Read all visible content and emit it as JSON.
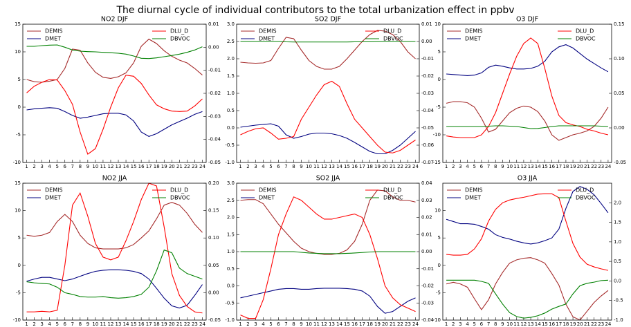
{
  "title": "The diurnal cycle of individual contributors to the total urbanization effect in ppbv",
  "chart_data": [
    {
      "type": "line",
      "title": "NO2 DJF",
      "x": [
        1,
        2,
        3,
        4,
        5,
        6,
        7,
        8,
        9,
        10,
        11,
        12,
        13,
        14,
        15,
        16,
        17,
        18,
        19,
        20,
        21,
        22,
        23,
        24
      ],
      "xlim": [
        0.5,
        24.5
      ],
      "ylim": [
        -10,
        15
      ],
      "yticks": [
        -10,
        -5,
        0,
        5,
        10,
        15
      ],
      "y2lim": [
        -0.05,
        0.01
      ],
      "y2ticks": [
        -0.05,
        -0.04,
        -0.03,
        -0.02,
        -0.01,
        {
          "value": 0,
          "label": "0.00"
        },
        0.01
      ],
      "legend": "upper left",
      "y2legend": "upper right",
      "series": [
        {
          "name": "DEMIS",
          "color": "#a52a2a",
          "values": [
            5,
            4.6,
            4.5,
            4.7,
            5,
            7,
            10.5,
            10.3,
            8,
            6.3,
            5.4,
            5.2,
            5.5,
            6.2,
            8,
            11,
            12.3,
            11.5,
            10.2,
            9.2,
            8.5,
            8,
            7,
            5.8
          ]
        },
        {
          "name": "DMET",
          "color": "#000080",
          "values": [
            -0.5,
            -0.3,
            -0.2,
            -0.1,
            -0.2,
            -0.8,
            -1.5,
            -2,
            -1.8,
            -1.5,
            -1.2,
            -1.1,
            -1.1,
            -1.4,
            -2.5,
            -4.5,
            -5.3,
            -4.8,
            -4,
            -3.2,
            -2.6,
            -2,
            -1.3,
            -0.8
          ]
        },
        {
          "name": "DLU_D",
          "color": "#ff0000",
          "axis": "y2",
          "values": [
            -0.0198,
            -0.0169,
            -0.0152,
            -0.014,
            -0.0142,
            -0.0188,
            -0.0248,
            -0.0368,
            -0.0464,
            -0.044,
            -0.0356,
            -0.026,
            -0.0176,
            -0.0121,
            -0.0126,
            -0.0157,
            -0.0207,
            -0.025,
            -0.0267,
            -0.0277,
            -0.0279,
            -0.0277,
            -0.0255,
            -0.0224
          ]
        },
        {
          "name": "DBVOC",
          "color": "#008000",
          "axis": "y2",
          "values": [
            0.0004,
            0.0004,
            0.0007,
            0.0009,
            0.001,
            0,
            -0.0012,
            -0.0017,
            -0.0019,
            -0.002,
            -0.0022,
            -0.0024,
            -0.0026,
            -0.003,
            -0.0038,
            -0.0048,
            -0.0049,
            -0.0046,
            -0.0041,
            -0.0036,
            -0.003,
            -0.0022,
            -0.0012,
            0.0002
          ]
        }
      ]
    },
    {
      "type": "line",
      "title": "SO2 DJF",
      "x": [
        1,
        2,
        3,
        4,
        5,
        6,
        7,
        8,
        9,
        10,
        11,
        12,
        13,
        14,
        15,
        16,
        17,
        18,
        19,
        20,
        21,
        22,
        23,
        24
      ],
      "xlim": [
        0.5,
        24.5
      ],
      "ylim": [
        -1,
        3
      ],
      "yticks": [
        {
          "value": -1,
          "label": "-1.0"
        },
        -0.5,
        {
          "value": 0,
          "label": "0.0"
        },
        0.5,
        {
          "value": 1,
          "label": "1.0"
        },
        1.5,
        {
          "value": 2,
          "label": "2.0"
        },
        2.5,
        {
          "value": 3,
          "label": "3.0"
        }
      ],
      "y2lim": [
        -0.07,
        0.01
      ],
      "y2ticks": [
        -0.07,
        -0.06,
        -0.05,
        -0.04,
        -0.03,
        -0.02,
        -0.01,
        {
          "value": 0,
          "label": "0.00"
        },
        0.01
      ],
      "legend": "upper left",
      "y2legend": "upper right",
      "series": [
        {
          "name": "DEMIS",
          "color": "#a52a2a",
          "values": [
            1.9,
            1.88,
            1.87,
            1.88,
            1.95,
            2.3,
            2.62,
            2.58,
            2.25,
            1.95,
            1.78,
            1.7,
            1.7,
            1.78,
            2,
            2.25,
            2.5,
            2.7,
            2.82,
            2.8,
            2.7,
            2.5,
            2.2,
            2
          ]
        },
        {
          "name": "DMET",
          "color": "#000080",
          "values": [
            0.02,
            0.05,
            0.08,
            0.1,
            0.12,
            0.05,
            -0.2,
            -0.3,
            -0.25,
            -0.18,
            -0.15,
            -0.15,
            -0.17,
            -0.22,
            -0.3,
            -0.42,
            -0.55,
            -0.68,
            -0.75,
            -0.75,
            -0.65,
            -0.5,
            -0.3,
            -0.1
          ]
        },
        {
          "name": "DLU_D",
          "color": "#ff0000",
          "axis": "y2",
          "values": [
            -0.054,
            -0.052,
            -0.0505,
            -0.05,
            -0.053,
            -0.0565,
            -0.056,
            -0.055,
            -0.045,
            -0.038,
            -0.031,
            -0.025,
            -0.023,
            -0.026,
            -0.036,
            -0.045,
            -0.05,
            -0.055,
            -0.06,
            -0.064,
            -0.0645,
            -0.063,
            -0.06,
            -0.057
          ]
        },
        {
          "name": "DBVOC",
          "color": "#008000",
          "axis": "y2",
          "values": [
            0,
            0,
            0,
            0,
            0,
            0,
            -0.0002,
            -0.0003,
            -0.0003,
            -0.0003,
            -0.0003,
            -0.0003,
            -0.0003,
            -0.0003,
            -0.0003,
            -0.0002,
            -0.0002,
            -0.0002,
            -0.0001,
            0,
            0,
            0,
            0,
            0
          ]
        }
      ]
    },
    {
      "type": "line",
      "title": "O3 DJF",
      "x": [
        1,
        2,
        3,
        4,
        5,
        6,
        7,
        8,
        9,
        10,
        11,
        12,
        13,
        14,
        15,
        16,
        17,
        18,
        19,
        20,
        21,
        22,
        23,
        24
      ],
      "xlim": [
        0.5,
        24.5
      ],
      "ylim": [
        -15,
        10
      ],
      "yticks": [
        -15,
        -10,
        -5,
        0,
        5,
        10
      ],
      "y2lim": [
        -0.05,
        0.15
      ],
      "y2ticks": [
        -0.05,
        {
          "value": 0,
          "label": "0.00"
        },
        0.05,
        {
          "value": 0.1,
          "label": "0.10"
        },
        0.15
      ],
      "legend": "upper left",
      "y2legend": "upper right",
      "series": [
        {
          "name": "DEMIS",
          "color": "#a52a2a",
          "values": [
            -4.3,
            -4,
            -4,
            -4.2,
            -5,
            -7,
            -9.5,
            -9,
            -7.5,
            -6,
            -5.2,
            -4.8,
            -5,
            -5.8,
            -7.5,
            -10,
            -11,
            -10.5,
            -10,
            -9.7,
            -9.3,
            -8.5,
            -7,
            -5
          ]
        },
        {
          "name": "DMET",
          "color": "#000080",
          "values": [
            1,
            0.9,
            0.8,
            0.7,
            0.8,
            1.2,
            2.2,
            2.6,
            2.4,
            2.1,
            1.9,
            1.9,
            2,
            2.4,
            3.3,
            5,
            5.9,
            6.3,
            5.7,
            4.7,
            3.7,
            2.9,
            2.1,
            1.4
          ]
        },
        {
          "name": "DLU_D",
          "color": "#ff0000",
          "axis": "y2",
          "values": [
            -0.0116,
            -0.0132,
            -0.014,
            -0.014,
            -0.014,
            -0.01,
            0.002,
            0.022,
            0.05,
            0.078,
            0.1036,
            0.122,
            0.13,
            0.122,
            0.086,
            0.046,
            0.018,
            0.0076,
            0.0044,
            0.002,
            -0.002,
            -0.0044,
            -0.0076,
            -0.01
          ]
        },
        {
          "name": "DBVOC",
          "color": "#008000",
          "axis": "y2",
          "values": [
            0.002,
            0.002,
            0.002,
            0.002,
            0.002,
            0.002,
            0.0025,
            0.003,
            0.003,
            0.0025,
            0.002,
            0.0005,
            -0.001,
            -0.0008,
            0.0005,
            0.002,
            0.003,
            0.003,
            0.003,
            0.003,
            0.003,
            0.003,
            0.0025,
            0.002
          ]
        }
      ]
    },
    {
      "type": "line",
      "title": "NO2  JJA",
      "x": [
        1,
        2,
        3,
        4,
        5,
        6,
        7,
        8,
        9,
        10,
        11,
        12,
        13,
        14,
        15,
        16,
        17,
        18,
        19,
        20,
        21,
        22,
        23,
        24
      ],
      "xlim": [
        0.5,
        24.5
      ],
      "ylim": [
        -10,
        15
      ],
      "yticks": [
        -10,
        -5,
        0,
        5,
        10,
        15
      ],
      "y2lim": [
        -0.05,
        0.2
      ],
      "y2ticks": [
        -0.05,
        {
          "value": 0,
          "label": "0.00"
        },
        0.05,
        {
          "value": 0.1,
          "label": "0.10"
        },
        0.15,
        {
          "value": 0.2,
          "label": "0.20"
        }
      ],
      "legend": "upper left",
      "y2legend": "upper right",
      "series": [
        {
          "name": "DEMIS",
          "color": "#a52a2a",
          "values": [
            5.5,
            5.3,
            5.5,
            6,
            8,
            9.3,
            8,
            5.5,
            4,
            3.2,
            3,
            3,
            3,
            3.2,
            3.8,
            5,
            6.3,
            8.5,
            11,
            11.5,
            11,
            9.5,
            7.5,
            6
          ]
        },
        {
          "name": "DMET",
          "color": "#000080",
          "values": [
            -2.9,
            -2.5,
            -2.2,
            -2.2,
            -2.5,
            -2.8,
            -2.5,
            -2,
            -1.5,
            -1.1,
            -0.9,
            -0.8,
            -0.8,
            -0.9,
            -1.1,
            -1.5,
            -2.5,
            -4.2,
            -6,
            -7.4,
            -7.8,
            -7.3,
            -5.5,
            -3.5
          ]
        },
        {
          "name": "DLU_D",
          "color": "#ff0000",
          "axis": "y2",
          "values": [
            -0.035,
            -0.035,
            -0.034,
            -0.035,
            -0.032,
            0.05,
            0.16,
            0.182,
            0.14,
            0.09,
            0.065,
            0.06,
            0.065,
            0.095,
            0.13,
            0.17,
            0.2,
            0.195,
            0.12,
            0.035,
            -0.005,
            -0.025,
            -0.035,
            -0.037
          ]
        },
        {
          "name": "DBVOC",
          "color": "#008000",
          "axis": "y2",
          "values": [
            0.02,
            0.018,
            0.017,
            0.016,
            0.01,
            0,
            -0.003,
            -0.007,
            -0.008,
            -0.008,
            -0.007,
            -0.009,
            -0.01,
            -0.009,
            -0.007,
            -0.003,
            0.01,
            0.04,
            0.078,
            0.073,
            0.045,
            0.035,
            0.03,
            0.025
          ]
        }
      ]
    },
    {
      "type": "line",
      "title": "SO2  JJA",
      "x": [
        1,
        2,
        3,
        4,
        5,
        6,
        7,
        8,
        9,
        10,
        11,
        12,
        13,
        14,
        15,
        16,
        17,
        18,
        19,
        20,
        21,
        22,
        23,
        24
      ],
      "xlim": [
        0.5,
        24.5
      ],
      "ylim": [
        -1,
        3
      ],
      "yticks": [
        {
          "value": -1,
          "label": "-1.0"
        },
        -0.5,
        {
          "value": 0,
          "label": "0.0"
        },
        0.5,
        {
          "value": 1,
          "label": "1.0"
        },
        1.5,
        {
          "value": 2,
          "label": "2.0"
        },
        2.5,
        {
          "value": 3,
          "label": "3.0"
        }
      ],
      "y2lim": [
        -0.04,
        0.04
      ],
      "y2ticks": [
        -0.04,
        -0.03,
        -0.02,
        -0.01,
        {
          "value": 0,
          "label": "0.00"
        },
        0.01,
        0.02,
        0.03,
        0.04
      ],
      "legend": "upper left",
      "y2legend": "upper right",
      "series": [
        {
          "name": "DEMIS",
          "color": "#a52a2a",
          "values": [
            2.5,
            2.52,
            2.52,
            2.4,
            2.1,
            1.8,
            1.55,
            1.3,
            1.1,
            1,
            0.95,
            0.92,
            0.92,
            0.95,
            1.05,
            1.3,
            1.8,
            2.5,
            2.8,
            2.78,
            2.6,
            2.5,
            2.5,
            2.45
          ]
        },
        {
          "name": "DMET",
          "color": "#000080",
          "values": [
            -0.35,
            -0.3,
            -0.25,
            -0.2,
            -0.15,
            -0.1,
            -0.08,
            -0.08,
            -0.1,
            -0.1,
            -0.08,
            -0.07,
            -0.07,
            -0.07,
            -0.08,
            -0.1,
            -0.15,
            -0.3,
            -0.6,
            -0.8,
            -0.75,
            -0.6,
            -0.45,
            -0.35
          ]
        },
        {
          "name": "DLU_D",
          "color": "#ff0000",
          "axis": "y2",
          "values": [
            -0.037,
            -0.039,
            -0.039,
            -0.028,
            -0.01,
            0.01,
            0.022,
            0.032,
            0.03,
            0.026,
            0.022,
            0.019,
            0.019,
            0.02,
            0.021,
            0.022,
            0.02,
            0.01,
            -0.004,
            -0.02,
            -0.027,
            -0.031,
            -0.033,
            -0.035
          ]
        },
        {
          "name": "DBVOC",
          "color": "#008000",
          "axis": "y2",
          "values": [
            0,
            0,
            0,
            0,
            0,
            0,
            0,
            0,
            -0.0004,
            -0.0008,
            -0.001,
            -0.0012,
            -0.0012,
            -0.0012,
            -0.001,
            -0.0008,
            -0.0005,
            -0.0002,
            0,
            0,
            0,
            0,
            0,
            0
          ]
        }
      ]
    },
    {
      "type": "line",
      "title": "O3  JJA",
      "x": [
        1,
        2,
        3,
        4,
        5,
        6,
        7,
        8,
        9,
        10,
        11,
        12,
        13,
        14,
        15,
        16,
        17,
        18,
        19,
        20,
        21,
        22,
        23,
        24
      ],
      "xlim": [
        0.5,
        24.5
      ],
      "ylim": [
        -10,
        15
      ],
      "yticks": [
        -10,
        -5,
        0,
        5,
        10
      ],
      "y2lim": [
        -1,
        2.5
      ],
      "y2ticks": [
        {
          "value": -1,
          "label": "-1.0"
        },
        -0.5,
        {
          "value": 0,
          "label": "0.0"
        },
        0.5,
        {
          "value": 1,
          "label": "1.0"
        },
        1.5,
        {
          "value": 2,
          "label": "2.0"
        }
      ],
      "legend": "upper left",
      "y2legend": "upper right",
      "series": [
        {
          "name": "DEMIS",
          "color": "#a52a2a",
          "values": [
            -3.4,
            -3.1,
            -3.4,
            -4,
            -6.1,
            -8.1,
            -6.3,
            -3.4,
            -1.3,
            0.4,
            1,
            1.3,
            1.4,
            1,
            0.4,
            -1.5,
            -3.6,
            -7.1,
            -9.4,
            -10,
            -8.4,
            -6.8,
            -5.6,
            -4.6
          ]
        },
        {
          "name": "DMET",
          "color": "#000080",
          "values": [
            8.4,
            8,
            7.6,
            7.6,
            7.5,
            7.1,
            6.6,
            5.6,
            5.1,
            4.8,
            4.4,
            4.1,
            3.9,
            4.1,
            4.5,
            5,
            6.6,
            10.4,
            13.5,
            14.4,
            13.9,
            12.9,
            11.3,
            9.6
          ]
        },
        {
          "name": "DLU_D",
          "color": "#ff0000",
          "axis": "y2",
          "values": [
            0.68,
            0.66,
            0.66,
            0.68,
            0.82,
            1.08,
            1.53,
            1.83,
            2,
            2.07,
            2.11,
            2.14,
            2.18,
            2.22,
            2.23,
            2.23,
            2.13,
            1.53,
            0.96,
            0.61,
            0.43,
            0.36,
            0.31,
            0.27
          ]
        },
        {
          "name": "DBVOC",
          "color": "#008000",
          "axis": "y2",
          "values": [
            0.02,
            0.02,
            0.02,
            0.02,
            0.02,
            -0.01,
            -0.06,
            -0.33,
            -0.59,
            -0.81,
            -0.91,
            -0.95,
            -0.93,
            -0.89,
            -0.82,
            -0.72,
            -0.65,
            -0.59,
            -0.33,
            -0.12,
            -0.06,
            -0.03,
            0.01,
            0.02
          ]
        }
      ]
    }
  ]
}
